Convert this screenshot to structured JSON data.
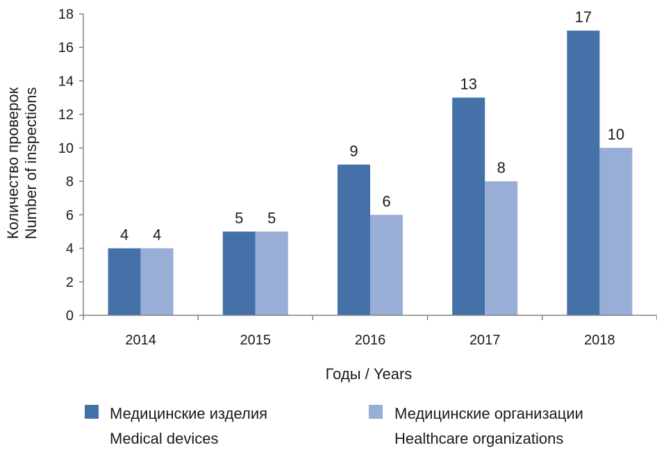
{
  "chart_data": {
    "type": "bar",
    "categories": [
      "2014",
      "2015",
      "2016",
      "2017",
      "2018"
    ],
    "series": [
      {
        "name": "Медицинские изделия\nMedical devices",
        "name_lines": [
          "Медицинские изделия",
          "Medical devices"
        ],
        "color": "#4472a8",
        "values": [
          4,
          5,
          9,
          13,
          17
        ]
      },
      {
        "name": "Медицинские организации\nHealthcare organizations",
        "name_lines": [
          "Медицинские организации",
          "Healthcare organizations"
        ],
        "color": "#98aed6",
        "values": [
          4,
          5,
          6,
          8,
          10
        ]
      }
    ],
    "xlabel": "Годы / Years",
    "ylabel_lines": [
      "Количество проверок",
      "Number of inspections"
    ],
    "ylim": [
      0,
      18
    ],
    "yticks": [
      0,
      2,
      4,
      6,
      8,
      10,
      12,
      14,
      16,
      18
    ],
    "grid": false,
    "data_labels": true,
    "legend_position": "bottom"
  }
}
